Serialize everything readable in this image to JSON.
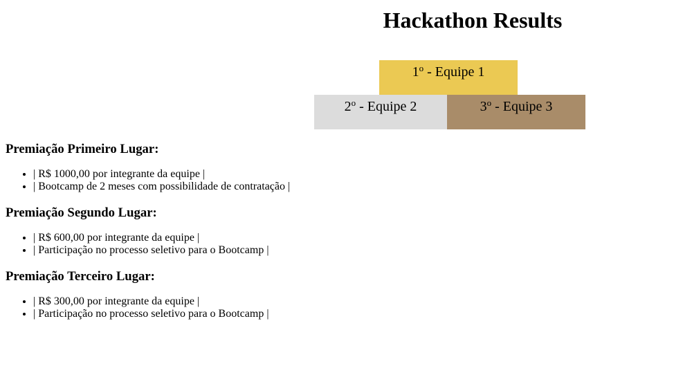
{
  "page": {
    "title": "Hackathon Results"
  },
  "podium": {
    "first": {
      "place": "1",
      "ordinal": "o",
      "team": " - Equipe 1",
      "color": "#ebc953"
    },
    "second": {
      "place": "2",
      "ordinal": "o",
      "team": " - Equipe 2",
      "color": "#dcdcdc"
    },
    "third": {
      "place": "3",
      "ordinal": "o",
      "team": " - Equipe 3",
      "color": "#a98c69"
    }
  },
  "prizes": {
    "first": {
      "heading": "Premiação Primeiro Lugar:",
      "items": [
        "| R$ 1000,00 por integrante da equipe |",
        "| Bootcamp de 2 meses com possibilidade de contratação |"
      ]
    },
    "second": {
      "heading": "Premiação Segundo Lugar:",
      "items": [
        "| R$ 600,00 por integrante da equipe |",
        "| Participação no processo seletivo para o Bootcamp |"
      ]
    },
    "third": {
      "heading": "Premiação Terceiro Lugar:",
      "items": [
        "| R$ 300,00 por integrante da equipe |",
        "| Participação no processo seletivo para o Bootcamp |"
      ]
    }
  }
}
